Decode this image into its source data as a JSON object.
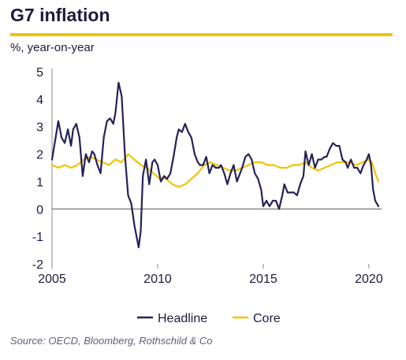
{
  "title": "G7 inflation",
  "subtitle": "%, year-on-year",
  "source": "Source: OECD, Bloomberg, Rothschild & Co",
  "colors": {
    "accent": "#f2c300",
    "headline": "#252158",
    "core": "#f2c300",
    "text": "#1f1a3d"
  },
  "chart_data": {
    "type": "line",
    "title": "G7 inflation",
    "ylabel": "%, year-on-year",
    "xlim": [
      2005,
      2020.6
    ],
    "ylim": [
      -2,
      5
    ],
    "xticks": [
      2005,
      2010,
      2015,
      2020
    ],
    "yticks": [
      -2,
      -1,
      0,
      1,
      2,
      3,
      4,
      5
    ],
    "ytick_labels": [
      "-2",
      "-1",
      "0",
      "1",
      "2",
      "3",
      "4",
      "5"
    ],
    "grid": false,
    "legend": "bottom",
    "series": [
      {
        "name": "Headline",
        "color": "#252158",
        "x": [
          2005.0,
          2005.15,
          2005.3,
          2005.45,
          2005.6,
          2005.75,
          2005.9,
          2006.0,
          2006.15,
          2006.3,
          2006.45,
          2006.6,
          2006.75,
          2006.9,
          2007.0,
          2007.15,
          2007.3,
          2007.45,
          2007.6,
          2007.75,
          2007.9,
          2008.0,
          2008.15,
          2008.3,
          2008.45,
          2008.6,
          2008.75,
          2008.9,
          2009.0,
          2009.1,
          2009.2,
          2009.3,
          2009.45,
          2009.6,
          2009.75,
          2009.85,
          2010.0,
          2010.15,
          2010.3,
          2010.45,
          2010.6,
          2010.75,
          2010.9,
          2011.0,
          2011.15,
          2011.3,
          2011.45,
          2011.6,
          2011.75,
          2011.9,
          2012.0,
          2012.15,
          2012.3,
          2012.45,
          2012.6,
          2012.75,
          2012.9,
          2013.0,
          2013.15,
          2013.3,
          2013.45,
          2013.6,
          2013.75,
          2013.9,
          2014.0,
          2014.15,
          2014.3,
          2014.45,
          2014.6,
          2014.75,
          2014.9,
          2015.0,
          2015.15,
          2015.3,
          2015.45,
          2015.6,
          2015.75,
          2015.9,
          2016.0,
          2016.15,
          2016.3,
          2016.45,
          2016.6,
          2016.75,
          2016.9,
          2017.0,
          2017.15,
          2017.3,
          2017.45,
          2017.6,
          2017.75,
          2017.9,
          2018.0,
          2018.15,
          2018.3,
          2018.45,
          2018.6,
          2018.75,
          2018.9,
          2019.0,
          2019.15,
          2019.3,
          2019.45,
          2019.6,
          2019.75,
          2019.9,
          2020.0,
          2020.1,
          2020.2,
          2020.3,
          2020.45
        ],
        "y": [
          1.8,
          2.5,
          3.2,
          2.6,
          2.4,
          2.9,
          2.3,
          2.9,
          3.1,
          2.6,
          1.2,
          2.0,
          1.7,
          2.1,
          2.0,
          1.6,
          1.3,
          2.6,
          3.2,
          3.3,
          3.1,
          3.5,
          4.6,
          4.1,
          2.0,
          0.5,
          0.2,
          -0.6,
          -1.0,
          -1.4,
          -0.8,
          1.2,
          1.8,
          0.9,
          1.7,
          1.8,
          1.6,
          1.0,
          1.2,
          1.1,
          1.3,
          1.9,
          2.6,
          2.9,
          2.8,
          3.1,
          2.8,
          2.6,
          2.0,
          1.7,
          1.6,
          1.6,
          1.9,
          1.3,
          1.6,
          1.5,
          1.5,
          1.6,
          1.3,
          0.9,
          1.3,
          1.6,
          1.0,
          1.3,
          1.5,
          1.9,
          2.0,
          1.8,
          1.3,
          1.1,
          0.7,
          0.1,
          0.3,
          0.1,
          0.3,
          0.3,
          0.0,
          0.5,
          0.9,
          0.6,
          0.6,
          0.6,
          0.5,
          0.9,
          1.2,
          2.1,
          1.6,
          2.0,
          1.5,
          1.8,
          1.8,
          1.9,
          1.9,
          2.2,
          2.4,
          2.3,
          2.3,
          1.8,
          1.7,
          1.5,
          1.8,
          1.5,
          1.5,
          1.3,
          1.6,
          1.8,
          2.0,
          1.6,
          0.7,
          0.3,
          0.1
        ]
      },
      {
        "name": "Core",
        "color": "#f2c300",
        "x": [
          2005.0,
          2005.3,
          2005.6,
          2005.9,
          2006.2,
          2006.5,
          2006.8,
          2007.1,
          2007.4,
          2007.7,
          2008.0,
          2008.3,
          2008.6,
          2008.9,
          2009.2,
          2009.5,
          2009.8,
          2010.1,
          2010.4,
          2010.7,
          2011.0,
          2011.3,
          2011.6,
          2011.9,
          2012.2,
          2012.5,
          2012.8,
          2013.1,
          2013.4,
          2013.7,
          2014.0,
          2014.3,
          2014.6,
          2014.9,
          2015.2,
          2015.5,
          2015.8,
          2016.1,
          2016.4,
          2016.7,
          2017.0,
          2017.3,
          2017.6,
          2017.9,
          2018.2,
          2018.5,
          2018.8,
          2019.1,
          2019.4,
          2019.7,
          2020.0,
          2020.15,
          2020.3,
          2020.45
        ],
        "y": [
          1.6,
          1.5,
          1.6,
          1.5,
          1.6,
          1.8,
          1.9,
          1.8,
          1.7,
          1.6,
          1.8,
          1.7,
          2.0,
          1.8,
          1.6,
          1.5,
          1.3,
          1.1,
          1.1,
          0.9,
          0.8,
          0.9,
          1.1,
          1.3,
          1.6,
          1.7,
          1.6,
          1.5,
          1.4,
          1.4,
          1.5,
          1.6,
          1.7,
          1.7,
          1.6,
          1.6,
          1.5,
          1.5,
          1.6,
          1.6,
          1.7,
          1.5,
          1.4,
          1.5,
          1.6,
          1.7,
          1.7,
          1.7,
          1.6,
          1.7,
          1.8,
          1.7,
          1.3,
          1.0
        ]
      }
    ],
    "x_tick_labels": [
      "2005",
      "2010",
      "2015",
      "2020"
    ]
  }
}
